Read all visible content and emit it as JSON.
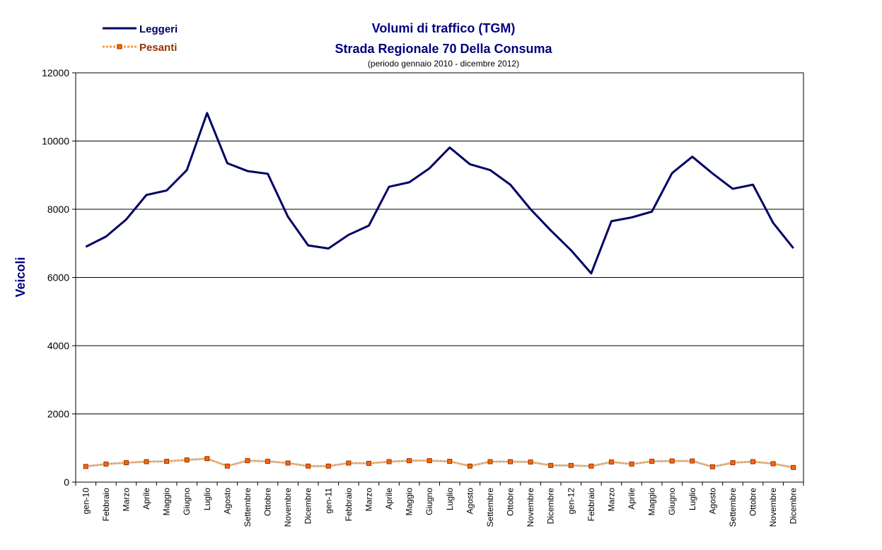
{
  "chart_data": {
    "type": "line",
    "title": "Volumi di traffico  (TGM)",
    "subtitle": "Strada Regionale 70 Della Consuma",
    "note": "(periodo gennaio 2010 - dicembre 2012)",
    "ylabel": "Veicoli",
    "xlabel": "",
    "ylim": [
      0,
      12000
    ],
    "yticks": [
      0,
      2000,
      4000,
      6000,
      8000,
      10000,
      12000
    ],
    "grid": true,
    "legend_position": "top-left",
    "categories": [
      "gen-10",
      "Febbraio",
      "Marzo",
      "Aprile",
      "Maggio",
      "Giugno",
      "Luglio",
      "Agosto",
      "Settembre",
      "Ottobre",
      "Novembre",
      "Dicembre",
      "gen-11",
      "Febbraio",
      "Marzo",
      "Aprile",
      "Maggio",
      "Giugno",
      "Luglio",
      "Agosto",
      "Settembre",
      "Ottobre",
      "Novembre",
      "Dicembre",
      "gen-12",
      "Febbraio",
      "Marzo",
      "Aprile",
      "Maggio",
      "Giugno",
      "Luglio",
      "Agosto",
      "Settembre",
      "Ottobre",
      "Novembre",
      "Dicembre"
    ],
    "series": [
      {
        "name": "Leggeri",
        "color": "#000066",
        "values": [
          6900,
          7200,
          7700,
          8420,
          8550,
          9150,
          10820,
          9350,
          9120,
          9040,
          7780,
          6940,
          6850,
          7250,
          7520,
          8660,
          8790,
          9200,
          9810,
          9320,
          9150,
          8720,
          8000,
          7380,
          6800,
          6120,
          7650,
          7760,
          7930,
          9060,
          9540,
          9050,
          8600,
          8720,
          7600,
          6860
        ]
      },
      {
        "name": "Pesanti",
        "color": "#ff6600",
        "values": [
          460,
          530,
          570,
          600,
          610,
          650,
          690,
          470,
          630,
          610,
          560,
          470,
          470,
          560,
          550,
          600,
          630,
          630,
          610,
          470,
          600,
          600,
          590,
          490,
          490,
          470,
          590,
          530,
          610,
          620,
          620,
          450,
          570,
          600,
          540,
          430
        ]
      }
    ]
  }
}
